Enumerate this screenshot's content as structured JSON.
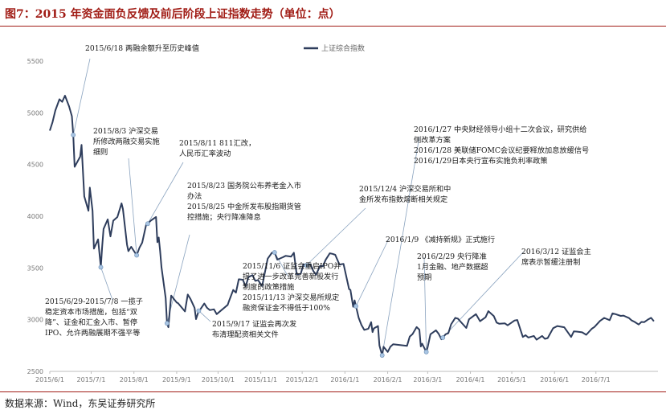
{
  "title": "图7：2015 年资金面负反馈及前后阶段上证指数走势（单位：点）",
  "source": "数据来源：Wind，东吴证券研究所",
  "chart_data": {
    "type": "line",
    "ylim": [
      2500,
      5500
    ],
    "yticks": [
      "2500",
      "3000",
      "3500",
      "4000",
      "4500",
      "5000",
      "5500"
    ],
    "xticks": [
      "2015/6/1",
      "2015/7/1",
      "2015/8/1",
      "2015/9/1",
      "2015/10/1",
      "2015/11/1",
      "2015/12/1",
      "2016/1/1",
      "2016/2/1",
      "2016/3/1",
      "2016/4/1",
      "2016/5/1",
      "2016/6/1",
      "2016/7/1"
    ],
    "grid": false,
    "legend_position": "top",
    "series": [
      {
        "name": "上证综合指数",
        "color": "#2e3d5c",
        "points": [
          [
            "2015-06-01",
            4828
          ],
          [
            "2015-06-03",
            4910
          ],
          [
            "2015-06-05",
            5023
          ],
          [
            "2015-06-08",
            5131
          ],
          [
            "2015-06-10",
            5106
          ],
          [
            "2015-06-12",
            5166
          ],
          [
            "2015-06-15",
            5062
          ],
          [
            "2015-06-17",
            4967
          ],
          [
            "2015-06-18",
            4786
          ],
          [
            "2015-06-19",
            4478
          ],
          [
            "2015-06-23",
            4576
          ],
          [
            "2015-06-24",
            4690
          ],
          [
            "2015-06-26",
            4192
          ],
          [
            "2015-06-29",
            4053
          ],
          [
            "2015-06-30",
            4277
          ],
          [
            "2015-07-02",
            4053
          ],
          [
            "2015-07-03",
            3687
          ],
          [
            "2015-07-06",
            3776
          ],
          [
            "2015-07-08",
            3507
          ],
          [
            "2015-07-09",
            3709
          ],
          [
            "2015-07-10",
            3877
          ],
          [
            "2015-07-13",
            3970
          ],
          [
            "2015-07-15",
            3805
          ],
          [
            "2015-07-17",
            3957
          ],
          [
            "2015-07-20",
            3992
          ],
          [
            "2015-07-23",
            4124
          ],
          [
            "2015-07-24",
            4070
          ],
          [
            "2015-07-27",
            3725
          ],
          [
            "2015-07-28",
            3663
          ],
          [
            "2015-07-30",
            3705
          ],
          [
            "2015-08-03",
            3623
          ],
          [
            "2015-08-05",
            3695
          ],
          [
            "2015-08-07",
            3744
          ],
          [
            "2015-08-10",
            3928
          ],
          [
            "2015-08-11",
            3928
          ],
          [
            "2015-08-13",
            3955
          ],
          [
            "2015-08-14",
            3965
          ],
          [
            "2015-08-17",
            3993
          ],
          [
            "2015-08-18",
            3749
          ],
          [
            "2015-08-19",
            3794
          ],
          [
            "2015-08-20",
            3664
          ],
          [
            "2015-08-21",
            3507
          ],
          [
            "2015-08-24",
            3210
          ],
          [
            "2015-08-25",
            2965
          ],
          [
            "2015-08-26",
            2927
          ],
          [
            "2015-08-27",
            3084
          ],
          [
            "2015-08-28",
            3232
          ],
          [
            "2015-09-01",
            3166
          ],
          [
            "2015-09-02",
            3160
          ],
          [
            "2015-09-07",
            3080
          ],
          [
            "2015-09-09",
            3243
          ],
          [
            "2015-09-11",
            3200
          ],
          [
            "2015-09-14",
            3114
          ],
          [
            "2015-09-15",
            3005
          ],
          [
            "2015-09-17",
            3086
          ],
          [
            "2015-09-18",
            3097
          ],
          [
            "2015-09-21",
            3156
          ],
          [
            "2015-09-23",
            3115
          ],
          [
            "2015-09-25",
            3092
          ],
          [
            "2015-09-28",
            3100
          ],
          [
            "2015-09-30",
            3053
          ],
          [
            "2015-10-08",
            3143
          ],
          [
            "2015-10-09",
            3183
          ],
          [
            "2015-10-12",
            3287
          ],
          [
            "2015-10-14",
            3262
          ],
          [
            "2015-10-16",
            3391
          ],
          [
            "2015-10-19",
            3386
          ],
          [
            "2015-10-21",
            3320
          ],
          [
            "2015-10-23",
            3412
          ],
          [
            "2015-10-26",
            3430
          ],
          [
            "2015-10-28",
            3375
          ],
          [
            "2015-10-30",
            3383
          ],
          [
            "2015-11-02",
            3325
          ],
          [
            "2015-11-04",
            3459
          ],
          [
            "2015-11-06",
            3590
          ],
          [
            "2015-11-09",
            3646
          ],
          [
            "2015-11-11",
            3650
          ],
          [
            "2015-11-13",
            3580
          ],
          [
            "2015-11-17",
            3604
          ],
          [
            "2015-11-19",
            3617
          ],
          [
            "2015-11-23",
            3610
          ],
          [
            "2015-11-25",
            3647
          ],
          [
            "2015-11-27",
            3436
          ],
          [
            "2015-11-30",
            3445
          ],
          [
            "2015-12-02",
            3536
          ],
          [
            "2015-12-04",
            3525
          ],
          [
            "2015-12-07",
            3536
          ],
          [
            "2015-12-09",
            3472
          ],
          [
            "2015-12-11",
            3434
          ],
          [
            "2015-12-14",
            3520
          ],
          [
            "2015-12-16",
            3516
          ],
          [
            "2015-12-18",
            3578
          ],
          [
            "2015-12-21",
            3642
          ],
          [
            "2015-12-23",
            3636
          ],
          [
            "2015-12-25",
            3627
          ],
          [
            "2015-12-28",
            3533
          ],
          [
            "2015-12-31",
            3539
          ],
          [
            "2016-01-04",
            3296
          ],
          [
            "2016-01-05",
            3287
          ],
          [
            "2016-01-07",
            3125
          ],
          [
            "2016-01-08",
            3186
          ],
          [
            "2016-01-11",
            3017
          ],
          [
            "2016-01-13",
            2949
          ],
          [
            "2016-01-15",
            2901
          ],
          [
            "2016-01-18",
            2913
          ],
          [
            "2016-01-20",
            2976
          ],
          [
            "2016-01-21",
            2880
          ],
          [
            "2016-01-22",
            2916
          ],
          [
            "2016-01-25",
            2938
          ],
          [
            "2016-01-26",
            2750
          ],
          [
            "2016-01-28",
            2655
          ],
          [
            "2016-01-29",
            2738
          ],
          [
            "2016-02-01",
            2688
          ],
          [
            "2016-02-03",
            2739
          ],
          [
            "2016-02-05",
            2763
          ],
          [
            "2016-02-15",
            2746
          ],
          [
            "2016-02-17",
            2836
          ],
          [
            "2016-02-19",
            2861
          ],
          [
            "2016-02-22",
            2928
          ],
          [
            "2016-02-24",
            2903
          ],
          [
            "2016-02-25",
            2741
          ],
          [
            "2016-02-26",
            2767
          ],
          [
            "2016-02-29",
            2688
          ],
          [
            "2016-03-01",
            2733
          ],
          [
            "2016-03-03",
            2859
          ],
          [
            "2016-03-07",
            2897
          ],
          [
            "2016-03-09",
            2862
          ],
          [
            "2016-03-11",
            2810
          ],
          [
            "2016-03-14",
            2859
          ],
          [
            "2016-03-16",
            2870
          ],
          [
            "2016-03-18",
            2955
          ],
          [
            "2016-03-21",
            3018
          ],
          [
            "2016-03-23",
            3009
          ],
          [
            "2016-03-25",
            2979
          ],
          [
            "2016-03-29",
            2920
          ],
          [
            "2016-03-31",
            3004
          ],
          [
            "2016-04-05",
            3053
          ],
          [
            "2016-04-08",
            2985
          ],
          [
            "2016-04-12",
            3023
          ],
          [
            "2016-04-14",
            3082
          ],
          [
            "2016-04-18",
            3034
          ],
          [
            "2016-04-20",
            2972
          ],
          [
            "2016-04-22",
            2960
          ],
          [
            "2016-04-26",
            2964
          ],
          [
            "2016-04-28",
            2945
          ],
          [
            "2016-05-03",
            2992
          ],
          [
            "2016-05-05",
            2997
          ],
          [
            "2016-05-09",
            2833
          ],
          [
            "2016-05-11",
            2850
          ],
          [
            "2016-05-13",
            2827
          ],
          [
            "2016-05-17",
            2843
          ],
          [
            "2016-05-19",
            2806
          ],
          [
            "2016-05-23",
            2843
          ],
          [
            "2016-05-25",
            2815
          ],
          [
            "2016-05-27",
            2822
          ],
          [
            "2016-05-31",
            2917
          ],
          [
            "2016-06-03",
            2938
          ],
          [
            "2016-06-08",
            2927
          ],
          [
            "2016-06-13",
            2833
          ],
          [
            "2016-06-15",
            2887
          ],
          [
            "2016-06-17",
            2885
          ],
          [
            "2016-06-21",
            2878
          ],
          [
            "2016-06-24",
            2854
          ],
          [
            "2016-06-28",
            2912
          ],
          [
            "2016-06-30",
            2930
          ],
          [
            "2016-07-04",
            2988
          ],
          [
            "2016-07-07",
            3017
          ],
          [
            "2016-07-11",
            2995
          ],
          [
            "2016-07-13",
            3060
          ],
          [
            "2016-07-15",
            3054
          ],
          [
            "2016-07-19",
            3036
          ],
          [
            "2016-07-21",
            3039
          ],
          [
            "2016-07-25",
            3015
          ],
          [
            "2016-07-27",
            2992
          ],
          [
            "2016-07-29",
            2979
          ],
          [
            "2016-08-01",
            2953
          ],
          [
            "2016-08-03",
            2978
          ],
          [
            "2016-08-05",
            2976
          ],
          [
            "2016-08-08",
            3004
          ],
          [
            "2016-08-10",
            3018
          ],
          [
            "2016-08-11",
            3002
          ],
          [
            "2016-08-12",
            2985
          ]
        ]
      }
    ],
    "annotations": [
      {
        "date": "2015-06-18",
        "lines": [
          "2015/6/18 两融余额升至历史峰值"
        ]
      },
      {
        "date": "2015-07-08",
        "lines": [
          "2015/6/29-2015/7/8 一揽子",
          "稳定资本市场措施，包括“双",
          "降”、证金和汇金入市、暂停",
          "IPO、允许两融展期不强平等"
        ]
      },
      {
        "date": "2015-08-03",
        "lines": [
          "2015/8/3 沪深交易",
          "所修改两融交易实施",
          "细则"
        ]
      },
      {
        "date": "2015-08-11",
        "lines": [
          "2015/8/11 811汇改，",
          "人民币汇率波动"
        ]
      },
      {
        "date": "2015-08-25",
        "lines": [
          "2015/8/23 国务院公布养老金入市",
          "办法",
          "2015/8/25 中金所发布股指期货管",
          "控措施；央行降准降息"
        ]
      },
      {
        "date": "2015-09-17",
        "lines": [
          "2015/9/17 证监会再次发",
          "布清理配资相关文件"
        ]
      },
      {
        "date": "2015-11-11",
        "lines": [
          "2015/11/6 证监会重启IPO并",
          "提了进一步改革完善新股发行",
          "制度的政策措施",
          "2015/11/13 沪深交易所规定",
          "融资保证金不得低于100%"
        ]
      },
      {
        "date": "2015-12-04",
        "lines": [
          "2015/12/4 沪深交易所和中",
          "金所发布指数熔断相关规定"
        ]
      },
      {
        "date": "2016-01-09",
        "lines": [
          "2016/1/9 《减持新规》正式施行"
        ]
      },
      {
        "date": "2016-01-28",
        "lines": [
          "2016/1/27 中央财经领导小组十二次会议，研究供给",
          "侧改革方案",
          "2016/1/28 美联储FOMC会议纪要释放加息放缓信号",
          "2016/1/29日本央行宣布实施负利率政策"
        ]
      },
      {
        "date": "2016-02-29",
        "lines": [
          "2016/2/29 央行降准",
          "1月金融、地产数据超",
          "预期"
        ]
      },
      {
        "date": "2016-03-12",
        "lines": [
          "2016/3/12 证监会主",
          "席表示暂缓注册制"
        ]
      }
    ]
  }
}
